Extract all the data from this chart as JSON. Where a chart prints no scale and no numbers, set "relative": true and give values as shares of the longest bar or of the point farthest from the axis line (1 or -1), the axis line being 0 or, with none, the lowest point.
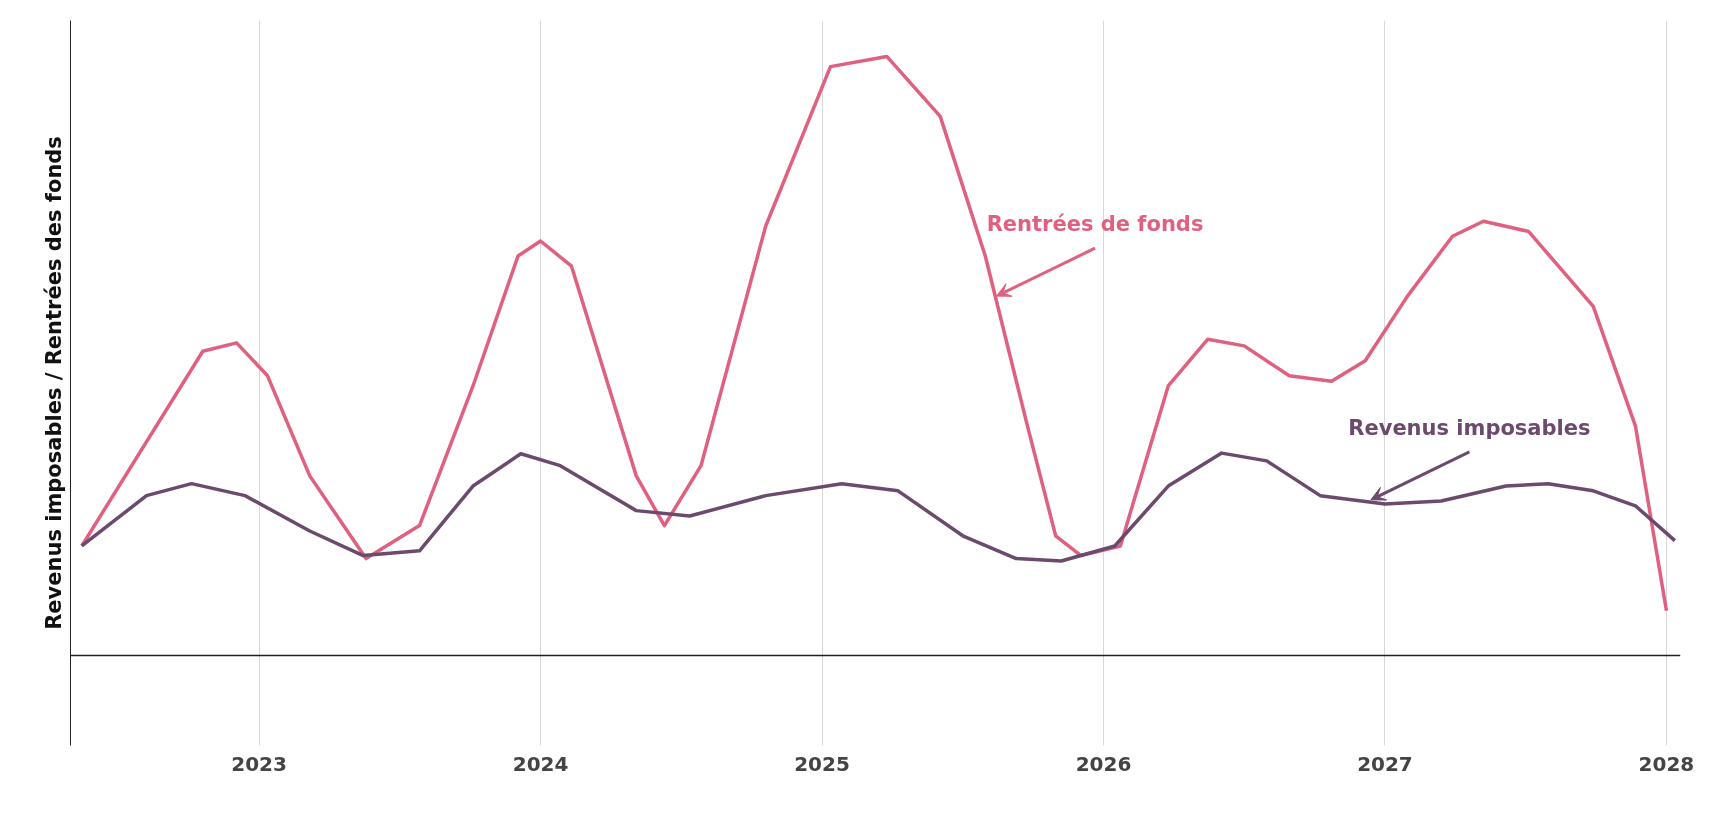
{
  "chart_data": {
    "type": "line",
    "relative": true,
    "ylabel": "Revenus imposables / Rentrées des fonds",
    "xlim": [
      2022.33,
      2028.05
    ],
    "xticks": [
      2023,
      2024,
      2025,
      2026,
      2027,
      2028
    ],
    "grid": "x",
    "marker": "none",
    "line_style": "solid",
    "series": [
      {
        "color": "#e0607f",
        "x": [
          2022.37,
          2022.8,
          2022.92,
          2023.03,
          2023.18,
          2023.38,
          2023.57,
          2023.76,
          2023.92,
          2024.0,
          2024.11,
          2024.34,
          2024.44,
          2024.57,
          2024.8,
          2025.03,
          2025.23,
          2025.42,
          2025.58,
          2025.73,
          2025.83,
          2025.92,
          2026.06,
          2026.23,
          2026.37,
          2026.5,
          2026.66,
          2026.81,
          2026.93,
          2027.08,
          2027.24,
          2027.35,
          2027.51,
          2027.74,
          2027.89,
          2028.0
        ],
        "values": [
          0.183,
          0.508,
          0.522,
          0.467,
          0.3,
          0.162,
          0.217,
          0.45,
          0.667,
          0.692,
          0.65,
          0.3,
          0.217,
          0.317,
          0.717,
          0.983,
          1.0,
          0.9,
          0.667,
          0.383,
          0.2,
          0.167,
          0.183,
          0.45,
          0.528,
          0.517,
          0.467,
          0.458,
          0.492,
          0.6,
          0.7,
          0.725,
          0.708,
          0.583,
          0.383,
          0.075
        ]
      },
      {
        "color": "#6b4a6e",
        "x": [
          2022.37,
          2022.6,
          2022.76,
          2022.95,
          2023.18,
          2023.37,
          2023.57,
          2023.76,
          2023.93,
          2024.07,
          2024.34,
          2024.53,
          2024.8,
          2025.07,
          2025.27,
          2025.5,
          2025.69,
          2025.85,
          2026.04,
          2026.23,
          2026.42,
          2026.58,
          2026.77,
          2027.0,
          2027.2,
          2027.43,
          2027.58,
          2027.74,
          2027.89,
          2028.03
        ],
        "values": [
          0.183,
          0.267,
          0.287,
          0.267,
          0.208,
          0.167,
          0.175,
          0.283,
          0.337,
          0.317,
          0.242,
          0.233,
          0.267,
          0.287,
          0.275,
          0.2,
          0.162,
          0.158,
          0.183,
          0.283,
          0.338,
          0.325,
          0.267,
          0.253,
          0.258,
          0.283,
          0.287,
          0.275,
          0.25,
          0.192
        ]
      }
    ],
    "annotations": [
      {
        "text": "Rentrées de fonds",
        "x": 2025.62,
        "y": 0.6
      },
      {
        "text": "Revenus imposables",
        "x": 2026.95,
        "y": 0.26
      }
    ]
  }
}
